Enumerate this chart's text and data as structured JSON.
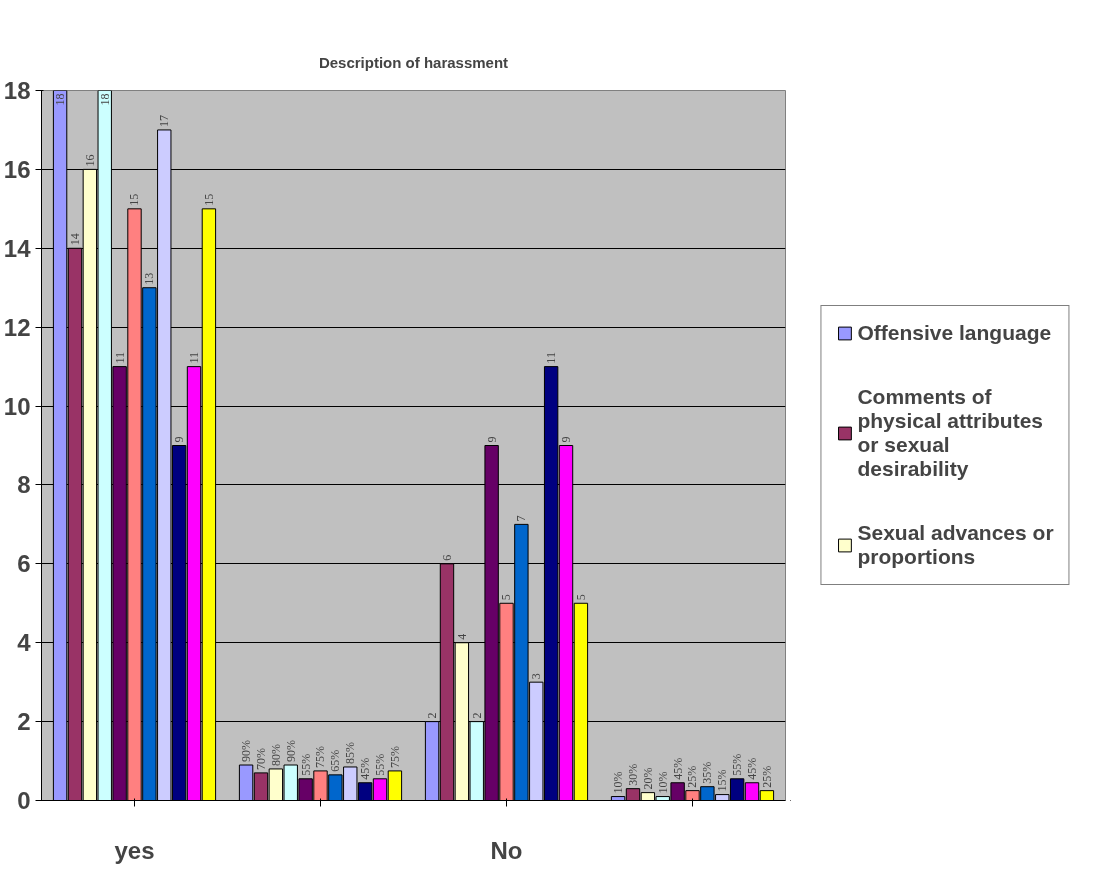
{
  "chart_data": {
    "type": "bar",
    "title": "Description of harassment",
    "categories": [
      "yes",
      null,
      "No",
      null
    ],
    "series": [
      {
        "name": "Offensive language",
        "color": "#9999ff",
        "values": [
          18,
          0.9,
          2,
          0.1
        ],
        "value_labels": [
          "18",
          "90%",
          "2",
          "10%"
        ]
      },
      {
        "name": "Comments of physical attributes or sexual desirability",
        "color": "#993366",
        "values": [
          14,
          0.7,
          6,
          0.3
        ],
        "value_labels": [
          "14",
          "70%",
          "6",
          "30%"
        ]
      },
      {
        "name": "Sexual advances or proportions",
        "color": "#ffffcc",
        "values": [
          16,
          0.8,
          4,
          0.2
        ],
        "value_labels": [
          "16",
          "80%",
          "4",
          "20%"
        ]
      },
      {
        "color": "#ccffff",
        "values": [
          18,
          0.9,
          2,
          0.1
        ],
        "value_labels": [
          "18",
          "90%",
          "2",
          "10%"
        ]
      },
      {
        "color": "#660066",
        "values": [
          11,
          0.55,
          9,
          0.45
        ],
        "value_labels": [
          "11",
          "55%",
          "9",
          "45%"
        ]
      },
      {
        "color": "#ff8080",
        "values": [
          15,
          0.75,
          5,
          0.25
        ],
        "value_labels": [
          "15",
          "75%",
          "5",
          "25%"
        ]
      },
      {
        "color": "#0066cc",
        "values": [
          13,
          0.65,
          7,
          0.35
        ],
        "value_labels": [
          "13",
          "65%",
          "7",
          "35%"
        ]
      },
      {
        "color": "#ccccff",
        "values": [
          17,
          0.85,
          3,
          0.15
        ],
        "value_labels": [
          "17",
          "85%",
          "3",
          "15%"
        ]
      },
      {
        "color": "#000080",
        "values": [
          9,
          0.45,
          11,
          0.55
        ],
        "value_labels": [
          "9",
          "45%",
          "11",
          "55%"
        ]
      },
      {
        "color": "#ff00ff",
        "values": [
          11,
          0.55,
          9,
          0.45
        ],
        "value_labels": [
          "11",
          "55%",
          "9",
          "45%"
        ]
      },
      {
        "color": "#ffff00",
        "values": [
          15,
          0.75,
          5,
          0.25
        ],
        "value_labels": [
          "15",
          "75%",
          "5",
          "25%"
        ]
      }
    ],
    "ylim": [
      0,
      18
    ],
    "yticks": [
      0,
      2,
      4,
      6,
      8,
      10,
      12,
      14,
      16,
      18
    ],
    "grid": "y",
    "legend": "right"
  }
}
